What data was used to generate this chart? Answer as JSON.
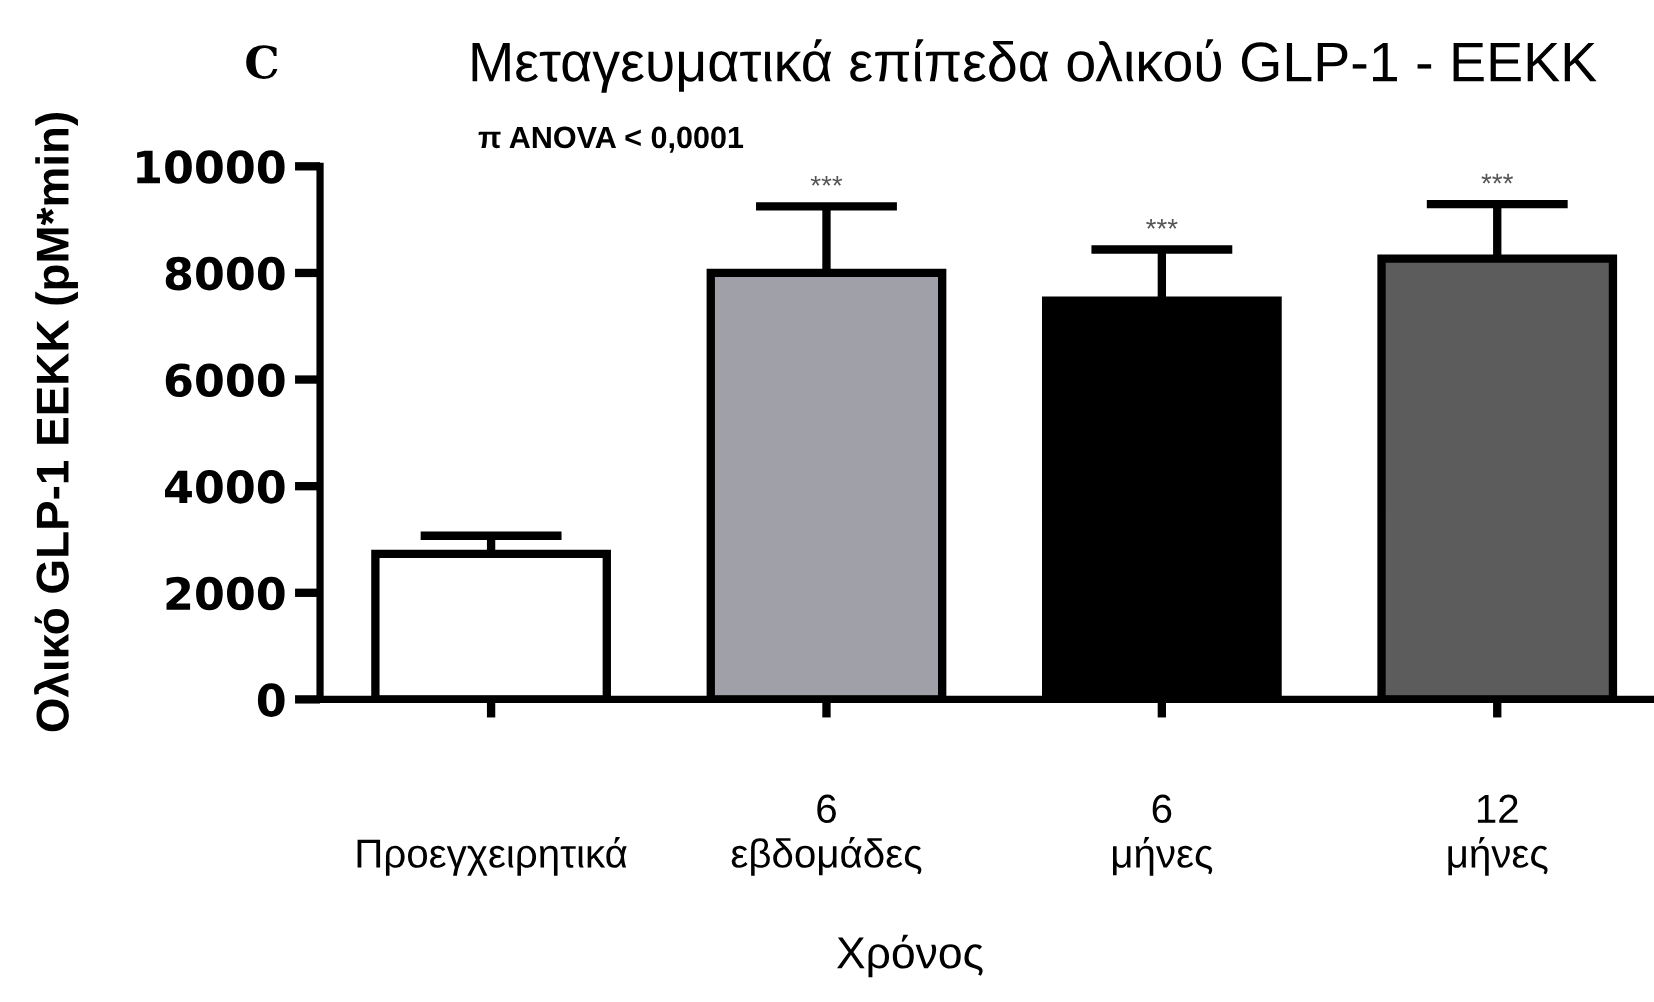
{
  "chart_data": {
    "type": "bar",
    "title": "Μεταγευματικά επίπεδα ολικού GLP-1 - ΕΕΚΚ",
    "subtitle": "π ANOVA < 0,0001",
    "xlabel": "Χρόνος",
    "ylabel": "Ολικό GLP-1 ΕΕΚΚ (pM*min)",
    "categories": [
      "Προεγχειρητικά",
      "6\nεβδομάδες",
      "6\nμήνες",
      "12\nμήνες"
    ],
    "values": [
      2730,
      8000,
      7480,
      8270
    ],
    "colors": [
      "#ffffff",
      "#a0a0a8",
      "#000000",
      "#5c5c5c"
    ],
    "errors": [
      [
        2730,
        3070
      ],
      [
        8000,
        9250
      ],
      [
        7480,
        8440
      ],
      [
        8270,
        9290
      ]
    ],
    "ylim": [
      0,
      10000
    ],
    "yticks": [
      0,
      2000,
      4000,
      6000,
      8000,
      10000
    ],
    "grid": false,
    "annotations": [
      "C",
      {
        "text": "***",
        "x": "6\nεβδομάδες",
        "y": 9250
      },
      {
        "text": "***",
        "x": "6\nμήνες",
        "y": 8440
      },
      {
        "text": "***",
        "x": "12\nμήνες",
        "y": 9290
      }
    ]
  }
}
